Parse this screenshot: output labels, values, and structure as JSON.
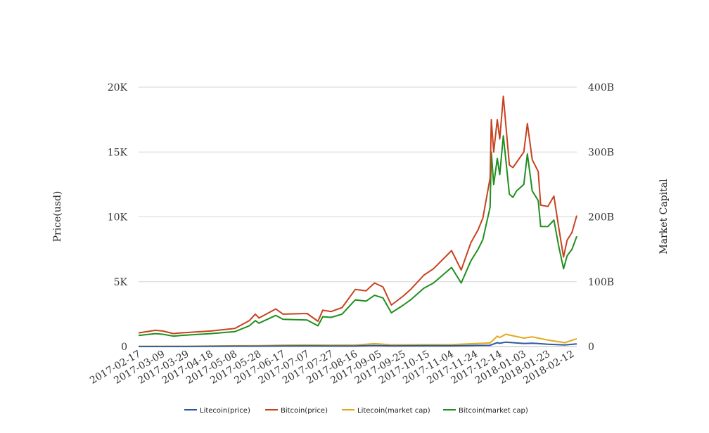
{
  "chart_data": {
    "type": "line",
    "title": "",
    "xlabel": "",
    "ylabel": "Price(usd)",
    "ylabel_right": "Market Capital",
    "ylim": [
      0,
      20000
    ],
    "ylim_right": [
      0,
      400
    ],
    "yticks": [
      "0",
      "5K",
      "10K",
      "15K",
      "20K"
    ],
    "yticks_right": [
      "0",
      "100B",
      "200B",
      "300B",
      "400B"
    ],
    "grid": true,
    "legend_position": "bottom",
    "x_start": "2017-02-17",
    "x_end": "2018-02-16",
    "xticks": [
      "2017-02-17",
      "2017-03-09",
      "2017-03-29",
      "2017-04-18",
      "2017-05-08",
      "2017-05-28",
      "2017-06-17",
      "2017-07-07",
      "2017-07-27",
      "2017-08-16",
      "2017-09-05",
      "2017-09-25",
      "2017-10-15",
      "2017-11-04",
      "2017-11-24",
      "2017-12-14",
      "2018-01-03",
      "2018-01-23",
      "2018-02-12"
    ],
    "series": [
      {
        "name": "Litecoin(price)",
        "axis": "left",
        "color": "#2c5aa0",
        "points": [
          [
            "2017-02-17",
            4
          ],
          [
            "2017-03-29",
            7
          ],
          [
            "2017-05-08",
            25
          ],
          [
            "2017-05-28",
            26
          ],
          [
            "2017-06-17",
            40
          ],
          [
            "2017-07-07",
            48
          ],
          [
            "2017-07-27",
            42
          ],
          [
            "2017-08-16",
            46
          ],
          [
            "2017-09-01",
            80
          ],
          [
            "2017-09-15",
            50
          ],
          [
            "2017-10-15",
            60
          ],
          [
            "2017-11-04",
            55
          ],
          [
            "2017-11-24",
            86
          ],
          [
            "2017-12-06",
            100
          ],
          [
            "2017-12-12",
            300
          ],
          [
            "2017-12-14",
            250
          ],
          [
            "2017-12-19",
            340
          ],
          [
            "2018-01-03",
            240
          ],
          [
            "2018-01-10",
            260
          ],
          [
            "2018-01-23",
            180
          ],
          [
            "2018-02-06",
            120
          ],
          [
            "2018-02-16",
            200
          ]
        ]
      },
      {
        "name": "Bitcoin(price)",
        "axis": "left",
        "color": "#c8421f",
        "points": [
          [
            "2017-02-17",
            1050
          ],
          [
            "2017-03-03",
            1250
          ],
          [
            "2017-03-09",
            1200
          ],
          [
            "2017-03-18",
            1000
          ],
          [
            "2017-03-24",
            1050
          ],
          [
            "2017-04-01",
            1100
          ],
          [
            "2017-04-18",
            1200
          ],
          [
            "2017-05-08",
            1400
          ],
          [
            "2017-05-20",
            2000
          ],
          [
            "2017-05-25",
            2500
          ],
          [
            "2017-05-28",
            2200
          ],
          [
            "2017-06-11",
            2900
          ],
          [
            "2017-06-17",
            2500
          ],
          [
            "2017-07-07",
            2550
          ],
          [
            "2017-07-16",
            1950
          ],
          [
            "2017-07-20",
            2800
          ],
          [
            "2017-07-27",
            2700
          ],
          [
            "2017-08-05",
            3000
          ],
          [
            "2017-08-16",
            4400
          ],
          [
            "2017-08-25",
            4300
          ],
          [
            "2017-09-01",
            4900
          ],
          [
            "2017-09-08",
            4600
          ],
          [
            "2017-09-15",
            3200
          ],
          [
            "2017-09-25",
            3900
          ],
          [
            "2017-10-01",
            4400
          ],
          [
            "2017-10-12",
            5500
          ],
          [
            "2017-10-20",
            6000
          ],
          [
            "2017-11-04",
            7400
          ],
          [
            "2017-11-12",
            5900
          ],
          [
            "2017-11-20",
            8000
          ],
          [
            "2017-11-26",
            9000
          ],
          [
            "2017-11-30",
            9900
          ],
          [
            "2017-12-06",
            13000
          ],
          [
            "2017-12-07",
            17500
          ],
          [
            "2017-12-09",
            15000
          ],
          [
            "2017-12-12",
            17500
          ],
          [
            "2017-12-14",
            16000
          ],
          [
            "2017-12-17",
            19300
          ],
          [
            "2017-12-22",
            14000
          ],
          [
            "2017-12-25",
            13800
          ],
          [
            "2017-12-28",
            14200
          ],
          [
            "2018-01-03",
            15000
          ],
          [
            "2018-01-06",
            17200
          ],
          [
            "2018-01-10",
            14400
          ],
          [
            "2018-01-15",
            13500
          ],
          [
            "2018-01-17",
            10900
          ],
          [
            "2018-01-23",
            10800
          ],
          [
            "2018-01-28",
            11600
          ],
          [
            "2018-02-01",
            9200
          ],
          [
            "2018-02-05",
            6900
          ],
          [
            "2018-02-08",
            8200
          ],
          [
            "2018-02-12",
            8800
          ],
          [
            "2018-02-16",
            10100
          ]
        ]
      },
      {
        "name": "Litecoin(market cap)",
        "axis": "right",
        "color": "#e3a81c",
        "points": [
          [
            "2017-02-17",
            0.2
          ],
          [
            "2017-03-29",
            0.4
          ],
          [
            "2017-05-08",
            1.2
          ],
          [
            "2017-05-28",
            1.3
          ],
          [
            "2017-06-17",
            2.2
          ],
          [
            "2017-07-07",
            2.4
          ],
          [
            "2017-07-27",
            2.2
          ],
          [
            "2017-08-16",
            2.4
          ],
          [
            "2017-09-01",
            4.4
          ],
          [
            "2017-09-15",
            2.7
          ],
          [
            "2017-10-15",
            3.0
          ],
          [
            "2017-11-04",
            3.0
          ],
          [
            "2017-11-24",
            4.7
          ],
          [
            "2017-12-06",
            5.5
          ],
          [
            "2017-12-12",
            16
          ],
          [
            "2017-12-14",
            14
          ],
          [
            "2017-12-19",
            19
          ],
          [
            "2018-01-03",
            13
          ],
          [
            "2018-01-10",
            15
          ],
          [
            "2018-01-23",
            10
          ],
          [
            "2018-02-06",
            6
          ],
          [
            "2018-02-16",
            12
          ]
        ]
      },
      {
        "name": "Bitcoin(market cap)",
        "axis": "right",
        "color": "#1f8f1f",
        "points": [
          [
            "2017-02-17",
            17
          ],
          [
            "2017-03-03",
            20
          ],
          [
            "2017-03-09",
            19
          ],
          [
            "2017-03-18",
            16
          ],
          [
            "2017-03-24",
            17
          ],
          [
            "2017-04-01",
            18
          ],
          [
            "2017-04-18",
            20
          ],
          [
            "2017-05-08",
            23
          ],
          [
            "2017-05-20",
            32
          ],
          [
            "2017-05-25",
            40
          ],
          [
            "2017-05-28",
            36
          ],
          [
            "2017-06-11",
            48
          ],
          [
            "2017-06-17",
            42
          ],
          [
            "2017-07-07",
            41
          ],
          [
            "2017-07-16",
            32
          ],
          [
            "2017-07-20",
            46
          ],
          [
            "2017-07-27",
            45
          ],
          [
            "2017-08-05",
            50
          ],
          [
            "2017-08-16",
            72
          ],
          [
            "2017-08-25",
            70
          ],
          [
            "2017-09-01",
            79
          ],
          [
            "2017-09-08",
            75
          ],
          [
            "2017-09-15",
            52
          ],
          [
            "2017-09-25",
            64
          ],
          [
            "2017-10-01",
            72
          ],
          [
            "2017-10-12",
            90
          ],
          [
            "2017-10-20",
            98
          ],
          [
            "2017-11-04",
            122
          ],
          [
            "2017-11-12",
            98
          ],
          [
            "2017-11-20",
            132
          ],
          [
            "2017-11-26",
            150
          ],
          [
            "2017-11-30",
            165
          ],
          [
            "2017-12-06",
            215
          ],
          [
            "2017-12-07",
            300
          ],
          [
            "2017-12-09",
            250
          ],
          [
            "2017-12-12",
            290
          ],
          [
            "2017-12-14",
            265
          ],
          [
            "2017-12-17",
            325
          ],
          [
            "2017-12-22",
            235
          ],
          [
            "2017-12-25",
            230
          ],
          [
            "2017-12-28",
            240
          ],
          [
            "2018-01-03",
            250
          ],
          [
            "2018-01-06",
            297
          ],
          [
            "2018-01-10",
            240
          ],
          [
            "2018-01-15",
            225
          ],
          [
            "2018-01-17",
            185
          ],
          [
            "2018-01-23",
            185
          ],
          [
            "2018-01-28",
            195
          ],
          [
            "2018-02-01",
            155
          ],
          [
            "2018-02-05",
            120
          ],
          [
            "2018-02-08",
            140
          ],
          [
            "2018-02-12",
            150
          ],
          [
            "2018-02-16",
            170
          ]
        ]
      }
    ]
  }
}
